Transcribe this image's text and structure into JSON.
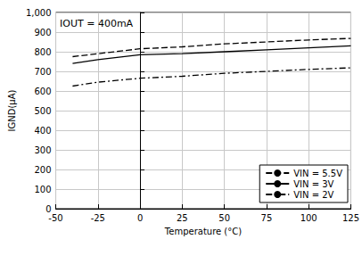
{
  "chart_data": {
    "type": "line",
    "annotations": [
      "IOUT = 400mA"
    ],
    "x_label": "Temperature (°C)",
    "y_label": "IGND(μA)",
    "x": [
      -40,
      -25,
      0,
      25,
      50,
      75,
      100,
      125
    ],
    "series": [
      {
        "name": "VIN = 5.5V",
        "color": "#000000",
        "line_style": "dashed",
        "values": [
          775,
          790,
          815,
          825,
          840,
          850,
          860,
          868
        ]
      },
      {
        "name": "VIN = 3V",
        "color": "#000000",
        "line_style": "solid",
        "values": [
          740,
          760,
          785,
          790,
          800,
          810,
          820,
          830
        ]
      },
      {
        "name": "VIN = 2V",
        "color": "#000000",
        "line_style": "dashdot",
        "values": [
          625,
          645,
          665,
          675,
          690,
          700,
          710,
          718
        ]
      }
    ],
    "xlim": [
      -50,
      125
    ],
    "xticks": [
      -50,
      -25,
      0,
      25,
      50,
      75,
      100,
      125
    ],
    "ylim": [
      0,
      1000
    ],
    "yticks": [
      0,
      100,
      200,
      300,
      400,
      500,
      600,
      700,
      800,
      900,
      1000
    ],
    "grid": true,
    "legend": "lower right"
  }
}
